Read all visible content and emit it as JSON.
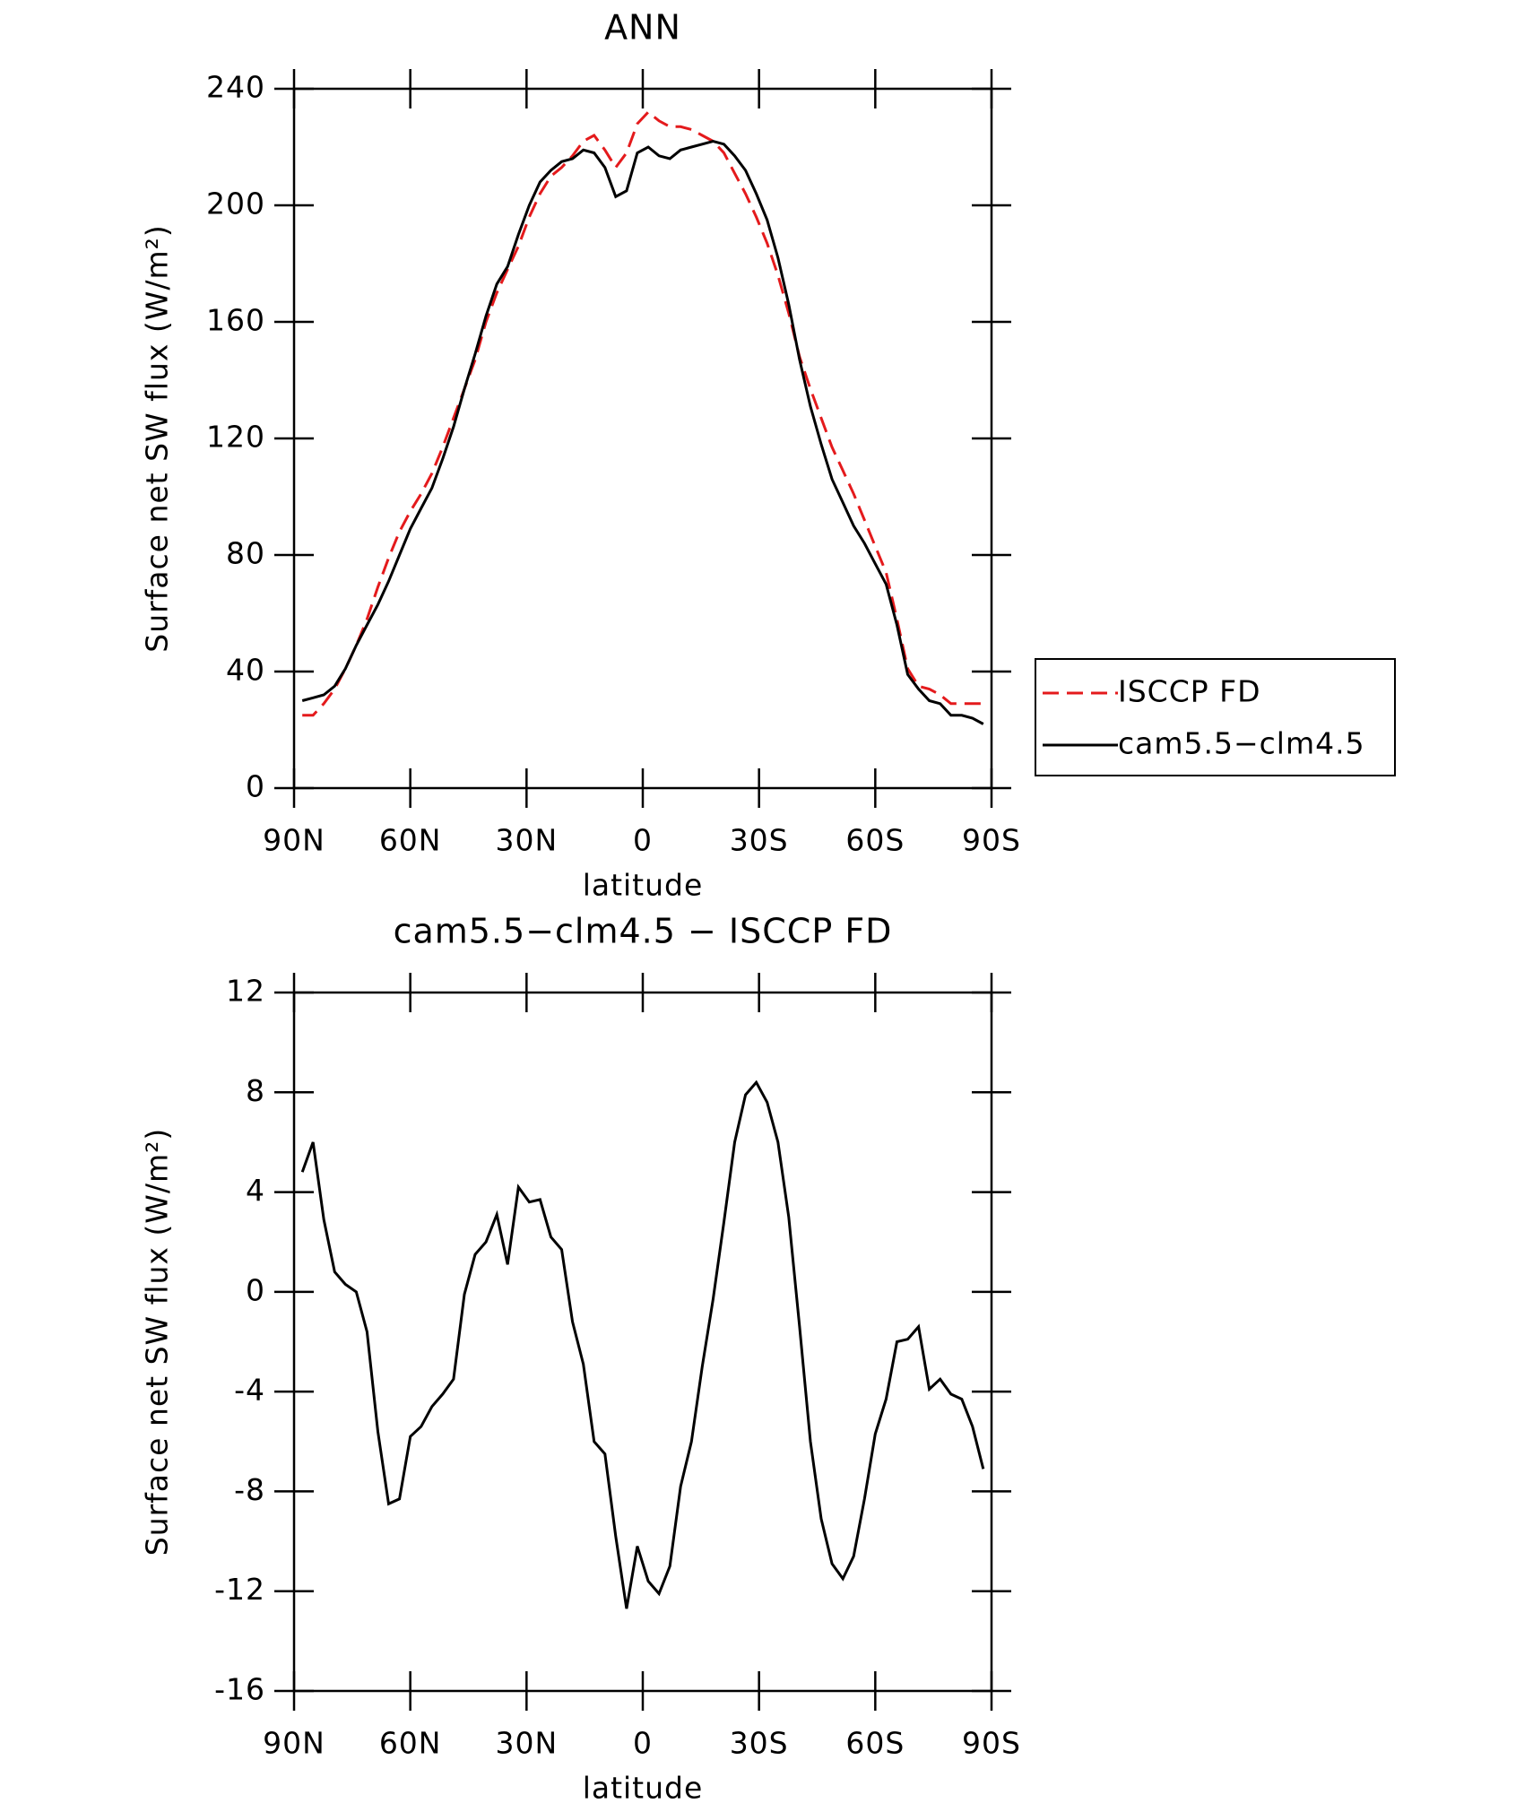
{
  "chart_data": [
    {
      "type": "line",
      "title": "ANN",
      "xlabel": "latitude",
      "ylabel": "Surface net SW flux (W/m²)",
      "x": [
        87.86,
        85.1,
        82.31,
        79.53,
        76.74,
        73.95,
        71.16,
        68.37,
        65.58,
        62.79,
        60.0,
        57.21,
        54.42,
        51.63,
        48.84,
        46.05,
        43.26,
        40.47,
        37.67,
        34.88,
        32.09,
        29.3,
        26.51,
        23.72,
        20.93,
        18.14,
        15.35,
        12.56,
        9.77,
        6.98,
        4.19,
        1.4,
        -1.4,
        -4.19,
        -6.98,
        -9.77,
        -12.56,
        -15.35,
        -18.14,
        -20.93,
        -23.72,
        -26.51,
        -29.3,
        -32.09,
        -34.88,
        -37.67,
        -40.47,
        -43.26,
        -46.05,
        -48.84,
        -51.63,
        -54.42,
        -57.21,
        -60.0,
        -62.79,
        -65.58,
        -68.37,
        -71.16,
        -73.95,
        -76.74,
        -79.53,
        -82.31,
        -85.1,
        -87.86
      ],
      "series": [
        {
          "name": "ISCCP FD",
          "color": "#e41a1c",
          "dash": true,
          "values": [
            25,
            25,
            29,
            34,
            41,
            49,
            58,
            69,
            79,
            88,
            95,
            101,
            108,
            117,
            127,
            137,
            147,
            160,
            170,
            178,
            186,
            196,
            204,
            210,
            213,
            217,
            222,
            224,
            219,
            213,
            218,
            228,
            232,
            229,
            227,
            227,
            226,
            224,
            222,
            218,
            211,
            204,
            196,
            187,
            176,
            163,
            148,
            137,
            127,
            117,
            109,
            101,
            92,
            83,
            74,
            58,
            41,
            35,
            34,
            32,
            29,
            29,
            29,
            29
          ]
        },
        {
          "name": "cam5.5−clm4.5",
          "color": "#000000",
          "dash": false,
          "values": [
            30,
            31,
            32,
            35,
            41,
            49,
            56,
            63,
            71,
            80,
            89,
            96,
            103,
            113,
            124,
            137,
            149,
            162,
            173,
            179,
            190,
            200,
            208,
            212,
            215,
            216,
            219,
            218,
            213,
            203,
            205,
            218,
            220,
            217,
            216,
            219,
            220,
            221,
            222,
            221,
            217,
            212,
            204,
            195,
            182,
            166,
            147,
            131,
            118,
            106,
            98,
            90,
            84,
            77,
            70,
            56,
            39,
            34,
            30,
            29,
            25,
            25,
            24,
            22
          ]
        }
      ],
      "xlim": [
        90,
        -90
      ],
      "xticks": [
        {
          "value": 90,
          "label": "90N"
        },
        {
          "value": 60,
          "label": "60N"
        },
        {
          "value": 30,
          "label": "30N"
        },
        0,
        {
          "value": -30,
          "label": "30S"
        },
        {
          "value": -60,
          "label": "60S"
        },
        {
          "value": -90,
          "label": "90S"
        }
      ],
      "ylim": [
        0,
        240
      ],
      "yticks": [
        0,
        40,
        80,
        120,
        160,
        200,
        240
      ],
      "legend": "outside-right"
    },
    {
      "type": "line",
      "title": "cam5.5−clm4.5 − ISCCP FD",
      "xlabel": "latitude",
      "ylabel": "Surface net SW flux (W/m²)",
      "x": [
        87.86,
        85.1,
        82.31,
        79.53,
        76.74,
        73.95,
        71.16,
        68.37,
        65.58,
        62.79,
        60.0,
        57.21,
        54.42,
        51.63,
        48.84,
        46.05,
        43.26,
        40.47,
        37.67,
        34.88,
        32.09,
        29.3,
        26.51,
        23.72,
        20.93,
        18.14,
        15.35,
        12.56,
        9.77,
        6.98,
        4.19,
        1.4,
        -1.4,
        -4.19,
        -6.98,
        -9.77,
        -12.56,
        -15.35,
        -18.14,
        -20.93,
        -23.72,
        -26.51,
        -29.3,
        -32.09,
        -34.88,
        -37.67,
        -40.47,
        -43.26,
        -46.05,
        -48.84,
        -51.63,
        -54.42,
        -57.21,
        -60.0,
        -62.79,
        -65.58,
        -68.37,
        -71.16,
        -73.95,
        -76.74,
        -79.53,
        -82.31,
        -85.1,
        -87.86
      ],
      "series": [
        {
          "color": "#000000",
          "dash": false,
          "values": [
            4.8,
            6.0,
            2.9,
            0.8,
            0.3,
            0.0,
            -1.6,
            -5.6,
            -8.5,
            -8.3,
            -5.8,
            -5.4,
            -4.6,
            -4.1,
            -3.5,
            -0.1,
            1.5,
            2.0,
            3.1,
            1.1,
            4.2,
            3.6,
            3.7,
            2.2,
            1.7,
            -1.2,
            -2.9,
            -6.0,
            -6.5,
            -9.8,
            -12.7,
            -10.2,
            -11.6,
            -12.1,
            -11.0,
            -7.8,
            -6.0,
            -3.0,
            -0.3,
            2.8,
            6.0,
            7.9,
            8.4,
            7.6,
            6.0,
            3.0,
            -1.4,
            -6.0,
            -9.1,
            -10.9,
            -11.5,
            -10.6,
            -8.3,
            -5.7,
            -4.3,
            -2.0,
            -1.9,
            -1.4,
            -3.9,
            -3.5,
            -4.1,
            -4.3,
            -5.4,
            -7.1
          ]
        }
      ],
      "xlim": [
        90,
        -90
      ],
      "xticks": [
        {
          "value": 90,
          "label": "90N"
        },
        {
          "value": 60,
          "label": "60N"
        },
        {
          "value": 30,
          "label": "30N"
        },
        0,
        {
          "value": -30,
          "label": "30S"
        },
        {
          "value": -60,
          "label": "60S"
        },
        {
          "value": -90,
          "label": "90S"
        }
      ],
      "ylim": [
        -16,
        12
      ],
      "yticks": [
        -16,
        -12,
        -8,
        -4,
        0,
        4,
        8,
        12
      ]
    }
  ]
}
